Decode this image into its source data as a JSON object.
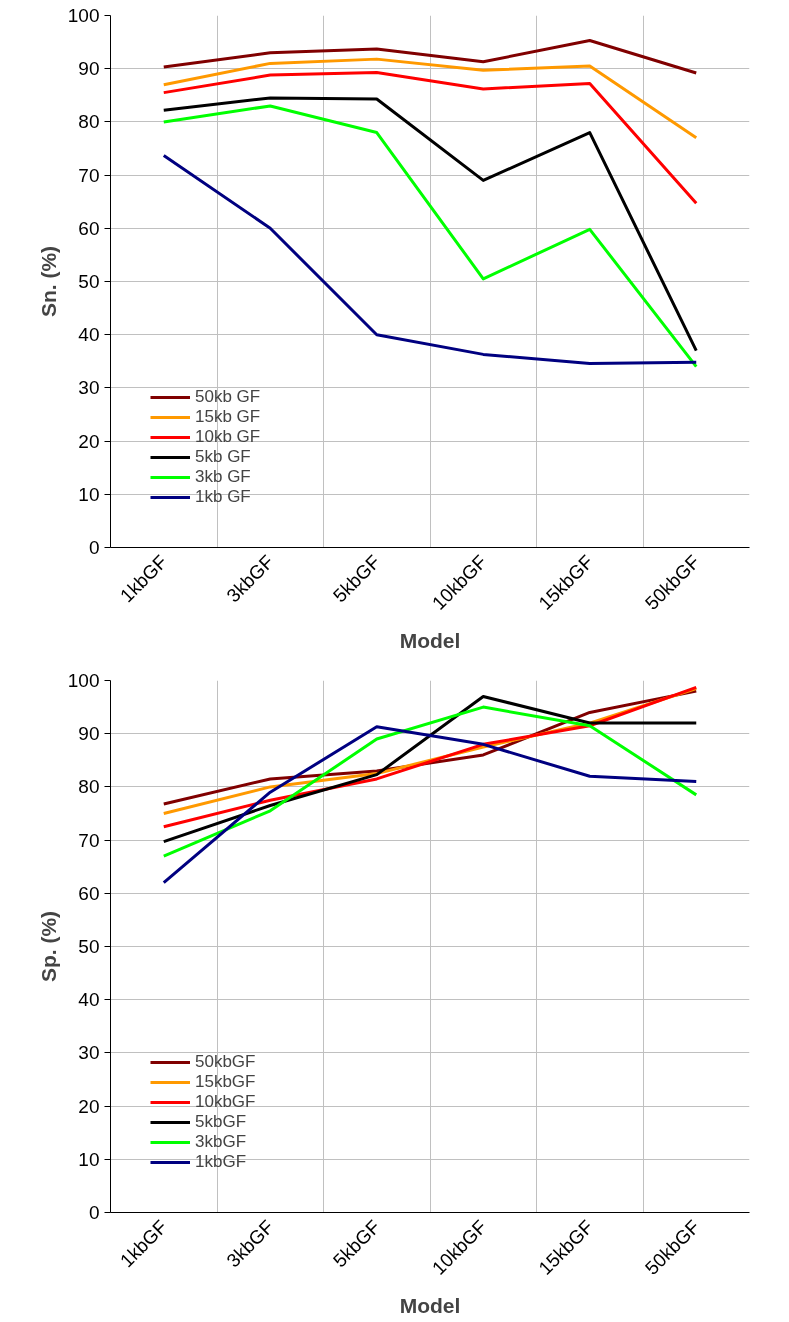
{
  "chart_data": [
    {
      "type": "line",
      "ylabel": "Sn. (%)",
      "xlabel": "Model",
      "categories": [
        "1kbGF",
        "3kbGF",
        "5kbGF",
        "10kbGF",
        "15kbGF",
        "50kbGF"
      ],
      "ylim": [
        0,
        100
      ],
      "yticks": [
        0,
        10,
        20,
        30,
        40,
        50,
        60,
        70,
        80,
        90,
        100
      ],
      "grid": true,
      "legend": "bottom left",
      "marker": "none",
      "line_style": "solid",
      "series": [
        {
          "name": "50kb GF",
          "color": "#800000",
          "values": [
            90.3,
            93,
            93.7,
            91.3,
            95.3,
            89.2
          ]
        },
        {
          "name": "15kb GF",
          "color": "#ff9900",
          "values": [
            87,
            91,
            91.8,
            89.7,
            90.5,
            77
          ]
        },
        {
          "name": "10kb GF",
          "color": "#ff0000",
          "values": [
            85.5,
            88.8,
            89.3,
            86.2,
            87.2,
            64.7
          ]
        },
        {
          "name": "5kb GF",
          "color": "#000000",
          "values": [
            82.2,
            84.5,
            84.3,
            69,
            78,
            37
          ]
        },
        {
          "name": "3kb GF",
          "color": "#00ff00",
          "values": [
            80,
            83,
            78,
            50.5,
            59.8,
            34
          ]
        },
        {
          "name": "1kb GF",
          "color": "#000080",
          "values": [
            73.7,
            60,
            40,
            36.3,
            34.6,
            34.8
          ]
        }
      ]
    },
    {
      "type": "line",
      "ylabel": "Sp. (%)",
      "xlabel": "Model",
      "categories": [
        "1kbGF",
        "3kbGF",
        "5kbGF",
        "10kbGF",
        "15kbGF",
        "50kbGF"
      ],
      "ylim": [
        0,
        100
      ],
      "yticks": [
        0,
        10,
        20,
        30,
        40,
        50,
        60,
        70,
        80,
        90,
        100
      ],
      "grid": true,
      "legend": "bottom left",
      "marker": "none",
      "line_style": "solid",
      "series": [
        {
          "name": "50kbGF",
          "color": "#800000",
          "values": [
            76.8,
            81.5,
            83,
            86,
            94,
            98
          ]
        },
        {
          "name": "15kbGF",
          "color": "#ff9900",
          "values": [
            75,
            80,
            82.5,
            87.5,
            92,
            98.5
          ]
        },
        {
          "name": "10kbGF",
          "color": "#ff0000",
          "values": [
            72.5,
            77.5,
            81.5,
            88,
            91.5,
            98.7
          ]
        },
        {
          "name": "5kbGF",
          "color": "#000000",
          "values": [
            69.7,
            76.5,
            82.3,
            97,
            92,
            92
          ]
        },
        {
          "name": "3kbGF",
          "color": "#00ff00",
          "values": [
            67,
            75.5,
            89,
            95,
            91.5,
            78.5
          ]
        },
        {
          "name": "1kbGF",
          "color": "#000080",
          "values": [
            62,
            79,
            91.3,
            88,
            82,
            81
          ]
        }
      ]
    }
  ]
}
